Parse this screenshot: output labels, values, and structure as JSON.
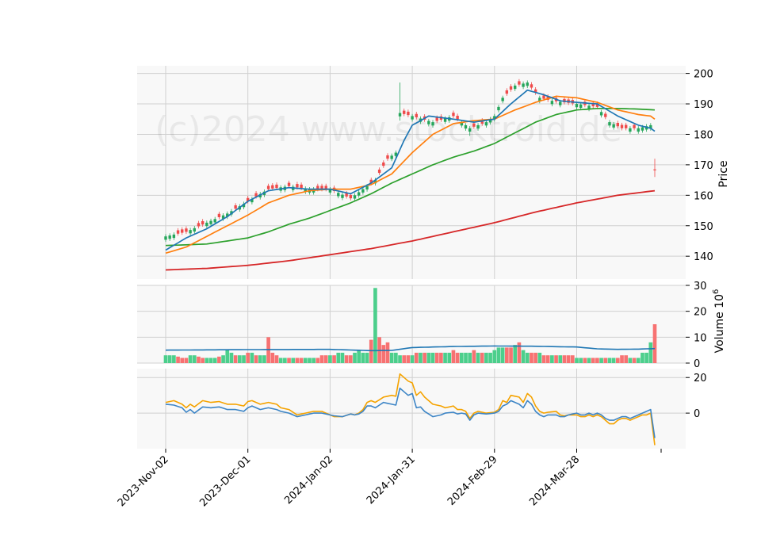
{
  "chart_data": {
    "type": "candlestick",
    "watermark": "(c)2024 www.stocktroid.de",
    "colors": {
      "up": "#26a65b",
      "down": "#ef4b4b",
      "vol_up": "#4ccf8c",
      "vol_down": "#f77272",
      "ma_short": "#1f77b4",
      "ma_mid": "#ff7f0e",
      "ma_long": "#2ca02c",
      "ma_200": "#d62728",
      "vol_ma": "#1f77b4",
      "osc_fast": "#3d85c6",
      "osc_slow": "#f5a300",
      "grid": "#d0d0d0",
      "panel_bg": "#f8f8f8"
    },
    "x_tick_labels": [
      "2023-Nov-02",
      "2023-Dec-01",
      "2024-Jan-02",
      "2024-Jan-31",
      "2024-Feb-29",
      "2024-Mar-28"
    ],
    "x_tick_index": [
      0,
      20,
      40,
      60,
      80,
      100
    ],
    "price_panel": {
      "ylabel": "Price",
      "yticks": [
        140,
        150,
        160,
        170,
        180,
        190,
        200
      ],
      "ylim": [
        132.5,
        202.5
      ],
      "close_keypoints": [
        [
          0,
          146.5
        ],
        [
          5,
          148
        ],
        [
          10,
          151
        ],
        [
          15,
          154
        ],
        [
          20,
          158
        ],
        [
          25,
          162
        ],
        [
          30,
          163
        ],
        [
          35,
          162
        ],
        [
          40,
          162
        ],
        [
          45,
          159
        ],
        [
          48,
          162
        ],
        [
          51,
          165
        ],
        [
          54,
          172
        ],
        [
          56,
          174
        ],
        [
          57,
          187
        ],
        [
          60,
          186
        ],
        [
          65,
          184
        ],
        [
          70,
          186
        ],
        [
          74,
          182
        ],
        [
          78,
          184
        ],
        [
          80,
          186
        ],
        [
          82,
          192
        ],
        [
          85,
          196
        ],
        [
          88,
          197
        ],
        [
          91,
          192
        ],
        [
          94,
          191
        ],
        [
          100,
          190
        ],
        [
          105,
          189
        ],
        [
          108,
          184
        ],
        [
          111,
          182
        ],
        [
          115,
          182
        ],
        [
          118,
          183
        ],
        [
          119,
          168.5
        ]
      ],
      "ma_short_keypoints": [
        [
          0,
          142
        ],
        [
          5,
          146
        ],
        [
          10,
          149
        ],
        [
          15,
          153
        ],
        [
          20,
          158
        ],
        [
          25,
          161.5
        ],
        [
          30,
          162.5
        ],
        [
          35,
          162
        ],
        [
          40,
          162
        ],
        [
          45,
          160.5
        ],
        [
          50,
          164
        ],
        [
          55,
          169
        ],
        [
          58,
          178
        ],
        [
          60,
          183
        ],
        [
          64,
          186
        ],
        [
          70,
          185
        ],
        [
          75,
          184
        ],
        [
          80,
          185
        ],
        [
          84,
          190
        ],
        [
          88,
          194.5
        ],
        [
          92,
          193
        ],
        [
          96,
          191
        ],
        [
          100,
          190.5
        ],
        [
          105,
          190
        ],
        [
          110,
          186
        ],
        [
          115,
          183
        ],
        [
          118,
          182
        ],
        [
          119,
          181
        ]
      ],
      "ma_mid_keypoints": [
        [
          0,
          141
        ],
        [
          5,
          143
        ],
        [
          10,
          146.5
        ],
        [
          15,
          150
        ],
        [
          20,
          153.5
        ],
        [
          25,
          157.5
        ],
        [
          30,
          160
        ],
        [
          35,
          161.5
        ],
        [
          40,
          162
        ],
        [
          45,
          162
        ],
        [
          50,
          163.5
        ],
        [
          55,
          167
        ],
        [
          60,
          174
        ],
        [
          65,
          180
        ],
        [
          70,
          183.5
        ],
        [
          75,
          184.5
        ],
        [
          80,
          185
        ],
        [
          85,
          188
        ],
        [
          90,
          190.5
        ],
        [
          95,
          192.5
        ],
        [
          100,
          192
        ],
        [
          105,
          190.5
        ],
        [
          110,
          188
        ],
        [
          115,
          186.5
        ],
        [
          118,
          186
        ],
        [
          119,
          185
        ]
      ],
      "ma_long_keypoints": [
        [
          0,
          143.5
        ],
        [
          10,
          144
        ],
        [
          20,
          146
        ],
        [
          25,
          148
        ],
        [
          30,
          150.5
        ],
        [
          35,
          152.5
        ],
        [
          40,
          155
        ],
        [
          45,
          157.5
        ],
        [
          50,
          160.5
        ],
        [
          55,
          164
        ],
        [
          60,
          167
        ],
        [
          65,
          170
        ],
        [
          70,
          172.5
        ],
        [
          75,
          174.5
        ],
        [
          80,
          177
        ],
        [
          85,
          180.5
        ],
        [
          90,
          184
        ],
        [
          95,
          186.5
        ],
        [
          100,
          188
        ],
        [
          105,
          188.5
        ],
        [
          110,
          188.5
        ],
        [
          115,
          188.3
        ],
        [
          119,
          188
        ]
      ],
      "ma_200_keypoints": [
        [
          0,
          135.5
        ],
        [
          10,
          136
        ],
        [
          20,
          137
        ],
        [
          30,
          138.5
        ],
        [
          40,
          140.5
        ],
        [
          50,
          142.5
        ],
        [
          60,
          145
        ],
        [
          70,
          148
        ],
        [
          80,
          151
        ],
        [
          90,
          154.5
        ],
        [
          100,
          157.5
        ],
        [
          110,
          160
        ],
        [
          119,
          161.5
        ]
      ]
    },
    "volume_panel": {
      "ylabel": "Volume  10^6",
      "yticks": [
        0,
        10,
        20,
        30
      ],
      "ylim": [
        0,
        30
      ],
      "values": [
        3,
        3,
        3,
        2.5,
        2,
        2,
        3,
        3,
        2.5,
        2,
        2,
        2,
        2,
        2.5,
        3,
        5,
        4,
        3,
        3,
        3,
        4,
        4,
        3,
        3,
        3,
        10,
        4,
        3,
        2,
        2,
        2,
        2,
        2,
        2,
        2,
        2,
        2,
        2,
        3,
        3,
        3,
        3,
        4,
        4,
        3,
        3,
        4,
        5,
        4,
        4,
        9,
        29,
        10,
        7,
        8,
        4,
        4,
        3,
        3,
        3,
        3,
        4,
        4,
        4,
        4,
        4,
        4,
        4,
        4,
        4,
        5,
        4,
        4,
        4,
        4,
        5,
        4,
        4,
        4,
        4,
        5,
        6,
        6,
        6,
        6,
        7,
        8,
        5,
        4,
        4,
        4,
        4,
        3,
        3,
        3,
        3,
        3,
        3,
        3,
        3,
        2,
        2,
        2,
        2,
        2,
        2,
        2,
        2,
        2,
        2,
        2,
        3,
        3,
        2,
        2,
        2,
        4,
        4,
        8,
        15
      ],
      "up_flags": [
        1,
        1,
        1,
        0,
        0,
        0,
        1,
        1,
        0,
        0,
        1,
        1,
        1,
        0,
        1,
        1,
        1,
        0,
        1,
        1,
        0,
        1,
        0,
        1,
        1,
        0,
        0,
        0,
        1,
        1,
        0,
        1,
        0,
        0,
        1,
        1,
        1,
        0,
        0,
        0,
        1,
        0,
        1,
        1,
        0,
        0,
        1,
        1,
        1,
        1,
        0,
        1,
        0,
        0,
        0,
        1,
        1,
        1,
        0,
        0,
        1,
        0,
        1,
        0,
        1,
        1,
        0,
        0,
        1,
        1,
        0,
        0,
        1,
        1,
        1,
        0,
        1,
        0,
        1,
        1,
        1,
        1,
        1,
        0,
        0,
        1,
        0,
        1,
        1,
        0,
        0,
        1,
        0,
        0,
        1,
        0,
        1,
        0,
        0,
        0,
        1,
        1,
        0,
        1,
        0,
        0,
        1,
        0,
        1,
        1,
        0,
        0,
        0,
        1,
        0,
        1,
        1,
        1,
        1,
        0
      ],
      "ma_keypoints": [
        [
          0,
          5
        ],
        [
          20,
          5.2
        ],
        [
          40,
          5.3
        ],
        [
          50,
          4.8
        ],
        [
          55,
          4.9
        ],
        [
          60,
          6
        ],
        [
          70,
          6.4
        ],
        [
          80,
          6.6
        ],
        [
          90,
          6.5
        ],
        [
          100,
          6.2
        ],
        [
          105,
          5.5
        ],
        [
          110,
          5.3
        ],
        [
          115,
          5.4
        ],
        [
          119,
          5.6
        ]
      ]
    },
    "oscillator_panel": {
      "yticks": [
        0,
        20
      ],
      "ylim": [
        -20,
        25
      ],
      "fast_keypoints": [
        [
          0,
          5
        ],
        [
          2,
          4.5
        ],
        [
          4,
          3
        ],
        [
          5,
          0.5
        ],
        [
          6,
          2
        ],
        [
          7,
          0
        ],
        [
          9,
          3.5
        ],
        [
          11,
          3
        ],
        [
          13,
          3.5
        ],
        [
          15,
          2
        ],
        [
          17,
          2
        ],
        [
          19,
          1
        ],
        [
          20,
          3
        ],
        [
          21,
          4
        ],
        [
          23,
          2
        ],
        [
          25,
          3
        ],
        [
          27,
          2
        ],
        [
          28,
          1
        ],
        [
          30,
          0
        ],
        [
          32,
          -2
        ],
        [
          34,
          -1
        ],
        [
          36,
          0
        ],
        [
          38,
          0
        ],
        [
          40,
          -1
        ],
        [
          41,
          -1.5
        ],
        [
          43,
          -2
        ],
        [
          45,
          -0.5
        ],
        [
          46,
          -1
        ],
        [
          47,
          -0.5
        ],
        [
          48,
          1
        ],
        [
          49,
          4
        ],
        [
          50,
          4
        ],
        [
          51,
          3
        ],
        [
          53,
          6
        ],
        [
          55,
          5
        ],
        [
          56,
          4.5
        ],
        [
          57,
          14
        ],
        [
          59,
          10
        ],
        [
          60,
          11
        ],
        [
          61,
          3
        ],
        [
          62,
          3.5
        ],
        [
          63,
          1
        ],
        [
          65,
          -2
        ],
        [
          67,
          -1
        ],
        [
          68,
          0
        ],
        [
          70,
          0.5
        ],
        [
          71,
          -0.5
        ],
        [
          72,
          0
        ],
        [
          73,
          -0.5
        ],
        [
          74,
          -4
        ],
        [
          75,
          -1
        ],
        [
          76,
          0
        ],
        [
          78,
          -0.5
        ],
        [
          80,
          0
        ],
        [
          81,
          1
        ],
        [
          82,
          4
        ],
        [
          83,
          5
        ],
        [
          84,
          7
        ],
        [
          86,
          5
        ],
        [
          87,
          3
        ],
        [
          88,
          7
        ],
        [
          89,
          5
        ],
        [
          90,
          1
        ],
        [
          91,
          -1
        ],
        [
          92,
          -2
        ],
        [
          93,
          -1
        ],
        [
          95,
          -1
        ],
        [
          96,
          -2
        ],
        [
          97,
          -2
        ],
        [
          98,
          -1
        ],
        [
          100,
          0
        ],
        [
          101,
          -1
        ],
        [
          102,
          -1
        ],
        [
          103,
          0
        ],
        [
          104,
          -1
        ],
        [
          105,
          0
        ],
        [
          106,
          -1
        ],
        [
          107,
          -3
        ],
        [
          108,
          -4
        ],
        [
          109,
          -4
        ],
        [
          110,
          -3
        ],
        [
          111,
          -2
        ],
        [
          112,
          -2
        ],
        [
          113,
          -3
        ],
        [
          114,
          -2
        ],
        [
          115,
          -1
        ],
        [
          116,
          0
        ],
        [
          117,
          1
        ],
        [
          118,
          2
        ],
        [
          119,
          -14
        ]
      ],
      "slow_keypoints": [
        [
          0,
          6
        ],
        [
          2,
          7
        ],
        [
          4,
          5
        ],
        [
          5,
          3
        ],
        [
          6,
          5
        ],
        [
          7,
          3.5
        ],
        [
          9,
          7
        ],
        [
          11,
          6
        ],
        [
          13,
          6.5
        ],
        [
          15,
          5
        ],
        [
          17,
          5
        ],
        [
          19,
          4
        ],
        [
          20,
          6.5
        ],
        [
          21,
          7
        ],
        [
          23,
          5
        ],
        [
          25,
          6
        ],
        [
          27,
          5
        ],
        [
          28,
          3
        ],
        [
          30,
          2
        ],
        [
          32,
          -1
        ],
        [
          34,
          0
        ],
        [
          36,
          1
        ],
        [
          38,
          1
        ],
        [
          40,
          -1
        ],
        [
          41,
          -2
        ],
        [
          43,
          -2
        ],
        [
          45,
          -0.5
        ],
        [
          46,
          -1
        ],
        [
          47,
          0
        ],
        [
          48,
          2
        ],
        [
          49,
          6
        ],
        [
          50,
          7
        ],
        [
          51,
          6
        ],
        [
          53,
          9
        ],
        [
          55,
          10
        ],
        [
          56,
          9.5
        ],
        [
          57,
          22
        ],
        [
          59,
          18
        ],
        [
          60,
          17
        ],
        [
          61,
          10
        ],
        [
          62,
          12
        ],
        [
          63,
          9
        ],
        [
          65,
          5
        ],
        [
          67,
          4
        ],
        [
          68,
          3
        ],
        [
          70,
          4
        ],
        [
          71,
          2
        ],
        [
          72,
          2
        ],
        [
          73,
          1
        ],
        [
          74,
          -3
        ],
        [
          75,
          0
        ],
        [
          76,
          1
        ],
        [
          78,
          0
        ],
        [
          80,
          0.5
        ],
        [
          81,
          2
        ],
        [
          82,
          7
        ],
        [
          83,
          6
        ],
        [
          84,
          10
        ],
        [
          86,
          9
        ],
        [
          87,
          6
        ],
        [
          88,
          11
        ],
        [
          89,
          9
        ],
        [
          90,
          4
        ],
        [
          91,
          1
        ],
        [
          92,
          0
        ],
        [
          93,
          0.5
        ],
        [
          95,
          1
        ],
        [
          96,
          -1
        ],
        [
          97,
          -1.5
        ],
        [
          98,
          -1
        ],
        [
          100,
          -1
        ],
        [
          101,
          -2
        ],
        [
          102,
          -2
        ],
        [
          103,
          -1
        ],
        [
          104,
          -2
        ],
        [
          105,
          -1
        ],
        [
          106,
          -2
        ],
        [
          107,
          -4
        ],
        [
          108,
          -6
        ],
        [
          109,
          -6
        ],
        [
          110,
          -4
        ],
        [
          111,
          -3
        ],
        [
          112,
          -3
        ],
        [
          113,
          -4
        ],
        [
          114,
          -3
        ],
        [
          115,
          -2
        ],
        [
          116,
          -1
        ],
        [
          117,
          -1
        ],
        [
          118,
          0
        ],
        [
          119,
          -18
        ]
      ]
    }
  }
}
